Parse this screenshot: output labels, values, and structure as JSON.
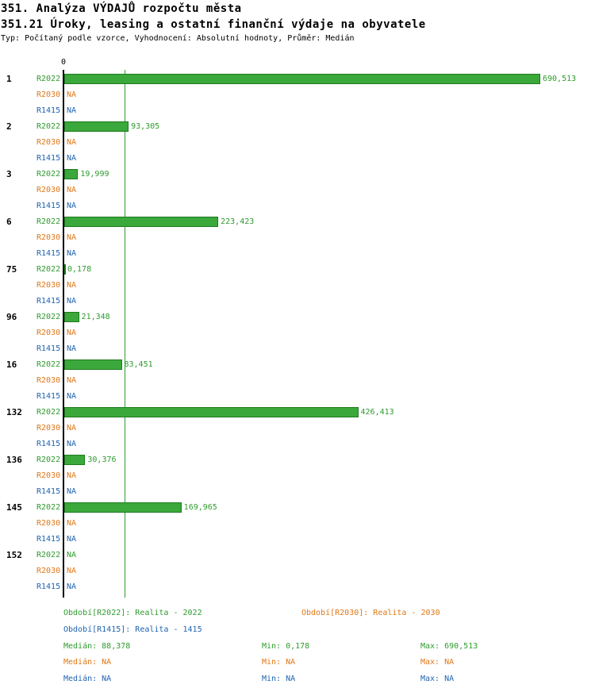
{
  "title": "351. Analýza VÝDAJŮ rozpočtu města",
  "subtitle": "351.21 Úroky, leasing a ostatní finanční výdaje na obyvatele",
  "meta": "Typ: Počítaný podle vzorce, Vyhodnocení: Absolutní hodnoty, Průměr: Medián",
  "axis": {
    "zero_label": "0"
  },
  "colors": {
    "r2022": "#2e9b2e",
    "r2030": "#e07818",
    "r1415": "#1f63b0",
    "bar_fill": "#3aa83a",
    "bar_border": "#1e7a1e",
    "median_line": "#2e9b2e",
    "axis_line": "#000000"
  },
  "chart_data": {
    "type": "bar",
    "orientation": "horizontal",
    "title": "351. Analýza VÝDAJŮ rozpočtu města",
    "subtitle": "351.21 Úroky, leasing a ostatní finanční výdaje na obyvatele",
    "series_names": [
      "R2022",
      "R2030",
      "R1415"
    ],
    "x_axis": {
      "min": 0,
      "tick_labels": [
        "0"
      ],
      "scale_max": 690.513
    },
    "median": {
      "value": 88.378,
      "label": "88,378"
    },
    "stats": {
      "R2022": {
        "median": "88,378",
        "min": "0,178",
        "max": "690,513"
      },
      "R2030": {
        "median": "NA",
        "min": "NA",
        "max": "NA"
      },
      "R1415": {
        "median": "NA",
        "min": "NA",
        "max": "NA"
      }
    },
    "groups": [
      {
        "id": "1",
        "rows": [
          {
            "series": "R2022",
            "value": 690.513,
            "label": "690,513"
          },
          {
            "series": "R2030",
            "value": null,
            "label": "NA"
          },
          {
            "series": "R1415",
            "value": null,
            "label": "NA"
          }
        ]
      },
      {
        "id": "2",
        "rows": [
          {
            "series": "R2022",
            "value": 93.305,
            "label": "93,305"
          },
          {
            "series": "R2030",
            "value": null,
            "label": "NA"
          },
          {
            "series": "R1415",
            "value": null,
            "label": "NA"
          }
        ]
      },
      {
        "id": "3",
        "rows": [
          {
            "series": "R2022",
            "value": 19.999,
            "label": "19,999"
          },
          {
            "series": "R2030",
            "value": null,
            "label": "NA"
          },
          {
            "series": "R1415",
            "value": null,
            "label": "NA"
          }
        ]
      },
      {
        "id": "6",
        "rows": [
          {
            "series": "R2022",
            "value": 223.423,
            "label": "223,423"
          },
          {
            "series": "R2030",
            "value": null,
            "label": "NA"
          },
          {
            "series": "R1415",
            "value": null,
            "label": "NA"
          }
        ]
      },
      {
        "id": "75",
        "rows": [
          {
            "series": "R2022",
            "value": 0.178,
            "label": "0,178"
          },
          {
            "series": "R2030",
            "value": null,
            "label": "NA"
          },
          {
            "series": "R1415",
            "value": null,
            "label": "NA"
          }
        ]
      },
      {
        "id": "96",
        "rows": [
          {
            "series": "R2022",
            "value": 21.348,
            "label": "21,348"
          },
          {
            "series": "R2030",
            "value": null,
            "label": "NA"
          },
          {
            "series": "R1415",
            "value": null,
            "label": "NA"
          }
        ]
      },
      {
        "id": "16",
        "rows": [
          {
            "series": "R2022",
            "value": 83.451,
            "label": "83,451"
          },
          {
            "series": "R2030",
            "value": null,
            "label": "NA"
          },
          {
            "series": "R1415",
            "value": null,
            "label": "NA"
          }
        ]
      },
      {
        "id": "132",
        "rows": [
          {
            "series": "R2022",
            "value": 426.413,
            "label": "426,413"
          },
          {
            "series": "R2030",
            "value": null,
            "label": "NA"
          },
          {
            "series": "R1415",
            "value": null,
            "label": "NA"
          }
        ]
      },
      {
        "id": "136",
        "rows": [
          {
            "series": "R2022",
            "value": 30.376,
            "label": "30,376"
          },
          {
            "series": "R2030",
            "value": null,
            "label": "NA"
          },
          {
            "series": "R1415",
            "value": null,
            "label": "NA"
          }
        ]
      },
      {
        "id": "145",
        "rows": [
          {
            "series": "R2022",
            "value": 169.965,
            "label": "169,965"
          },
          {
            "series": "R2030",
            "value": null,
            "label": "NA"
          },
          {
            "series": "R1415",
            "value": null,
            "label": "NA"
          }
        ]
      },
      {
        "id": "152",
        "rows": [
          {
            "series": "R2022",
            "value": null,
            "label": "NA"
          },
          {
            "series": "R2030",
            "value": null,
            "label": "NA"
          },
          {
            "series": "R1415",
            "value": null,
            "label": "NA"
          }
        ]
      }
    ]
  },
  "legend": {
    "r2022": {
      "period": "Období[R2022]: Realita - 2022",
      "median": "Medián: 88,378",
      "min": "Min: 0,178",
      "max": "Max: 690,513"
    },
    "r2030": {
      "period": "Období[R2030]: Realita - 2030",
      "median": "Medián: NA",
      "min": "Min: NA",
      "max": "Max: NA"
    },
    "r1415": {
      "period": "Období[R1415]: Realita - 1415",
      "median": "Medián: NA",
      "min": "Min: NA",
      "max": "Max: NA"
    }
  }
}
